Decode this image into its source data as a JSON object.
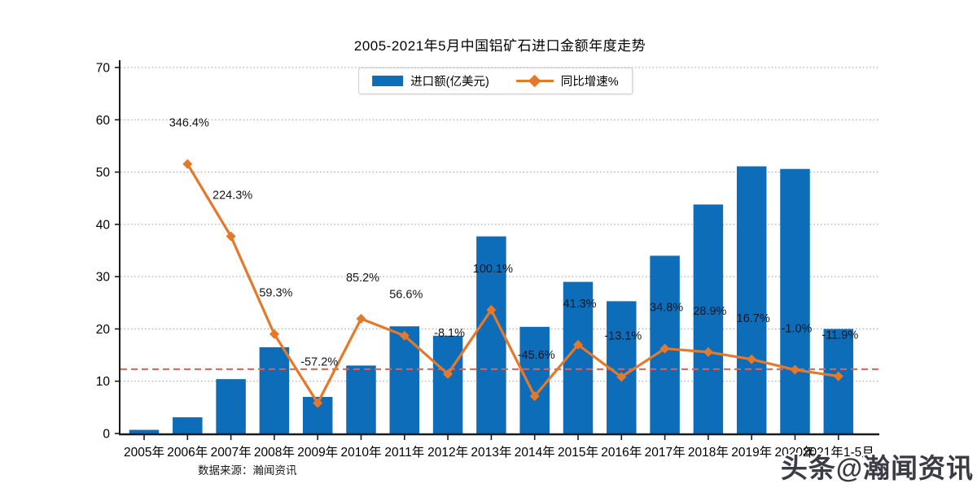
{
  "title": "2005-2021年5月中国铝矿石进口金额年度走势",
  "legend": {
    "bar_label": "进口额(亿美元)",
    "line_label": "同比增速%"
  },
  "source_note": "数据来源：瀚闻资讯",
  "watermark": "头条@瀚闻资讯",
  "colors": {
    "bar": "#0d6db9",
    "line": "#e6782a",
    "zero_line": "#ec5b56",
    "grid": "#999999",
    "axis": "#1a1a1a",
    "label_text": "#14141e"
  },
  "chart_data": {
    "type": "bar+line",
    "title": "2005-2021年5月中国铝矿石进口金额年度走势",
    "categories": [
      "2005年",
      "2006年",
      "2007年",
      "2008年",
      "2009年",
      "2010年",
      "2011年",
      "2012年",
      "2013年",
      "2014年",
      "2015年",
      "2016年",
      "2017年",
      "2018年",
      "2019年",
      "2020年",
      "2021年1-5月"
    ],
    "series": [
      {
        "name": "进口额(亿美元)",
        "type": "bar",
        "axis": "primary",
        "values": [
          0.7,
          3.1,
          10.4,
          16.5,
          7.0,
          13.0,
          20.5,
          18.7,
          37.7,
          20.4,
          29.0,
          25.3,
          34.0,
          43.8,
          51.1,
          50.6,
          20.0
        ]
      },
      {
        "name": "同比增速%",
        "type": "line",
        "axis": "secondary",
        "values": [
          null,
          346.4,
          224.3,
          59.3,
          -57.2,
          85.2,
          56.6,
          -8.1,
          100.1,
          -45.6,
          41.3,
          -13.1,
          34.8,
          28.9,
          16.7,
          -1.0,
          -11.9
        ],
        "labels": [
          null,
          "346.4%",
          "224.3%",
          "59.3%",
          "-57.2%",
          "85.2%",
          "56.6%",
          "-8.1%",
          "100.1%",
          "-45.6%",
          "41.3%",
          "-13.1%",
          "34.8%",
          "28.9%",
          "16.7%",
          "-1.0%",
          "-11.9%"
        ]
      }
    ],
    "primary_axis": {
      "min": 0,
      "max": 70,
      "ticks": [
        0,
        10,
        20,
        30,
        40,
        50,
        60,
        70
      ]
    },
    "secondary_axis": {
      "zero_at_primary": 12.3,
      "primary_units_per_percent": 0.1133,
      "shown": false
    },
    "zero_growth_line": true,
    "grid": "dotted-horizontal",
    "legend_position": "top-center"
  }
}
